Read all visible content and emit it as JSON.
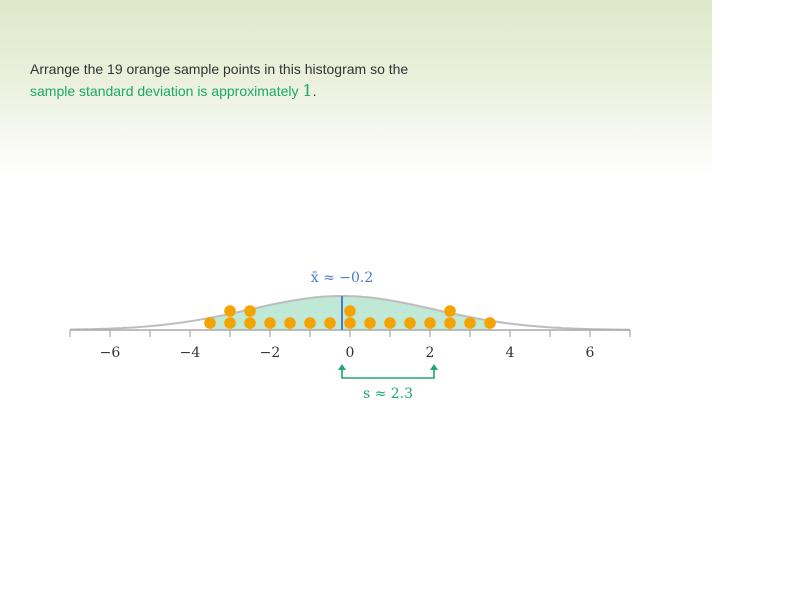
{
  "instructions": {
    "line1": "Arrange the 19 orange sample points in this histogram so the",
    "line2_text": "sample standard deviation is approximately ",
    "target_value": "1",
    "period": "."
  },
  "axis": {
    "min": -7,
    "max": 7,
    "tick_labels": [
      {
        "value": -6,
        "label": "−6"
      },
      {
        "value": -4,
        "label": "−4"
      },
      {
        "value": -2,
        "label": "−2"
      },
      {
        "value": 0,
        "label": "0"
      },
      {
        "value": 2,
        "label": "2"
      },
      {
        "value": 4,
        "label": "4"
      },
      {
        "value": 6,
        "label": "6"
      }
    ]
  },
  "mean": {
    "value": -0.2,
    "label": "x̄ ≈ −0.2"
  },
  "std_dev": {
    "value": 2.3,
    "label": "s ≈ 2.3"
  },
  "sample_points": [
    {
      "x": -3.5,
      "stack": 0
    },
    {
      "x": -3.0,
      "stack": 0
    },
    {
      "x": -3.0,
      "stack": 1
    },
    {
      "x": -2.5,
      "stack": 0
    },
    {
      "x": -2.5,
      "stack": 1
    },
    {
      "x": -2.0,
      "stack": 0
    },
    {
      "x": -1.5,
      "stack": 0
    },
    {
      "x": -1.0,
      "stack": 0
    },
    {
      "x": -0.5,
      "stack": 0
    },
    {
      "x": 0.0,
      "stack": 0
    },
    {
      "x": 0.0,
      "stack": 1
    },
    {
      "x": 0.5,
      "stack": 0
    },
    {
      "x": 1.0,
      "stack": 0
    },
    {
      "x": 1.5,
      "stack": 0
    },
    {
      "x": 2.0,
      "stack": 0
    },
    {
      "x": 2.5,
      "stack": 0
    },
    {
      "x": 2.5,
      "stack": 1
    },
    {
      "x": 3.0,
      "stack": 0
    },
    {
      "x": 3.5,
      "stack": 0
    }
  ],
  "colors": {
    "point": "#f5a300",
    "curve": "#bdbdbd",
    "fill": "#bfe8d6",
    "mean": "#4a7bd0",
    "std": "#1aa86a",
    "axis": "#aaaaaa",
    "tick_label": "#333333"
  }
}
